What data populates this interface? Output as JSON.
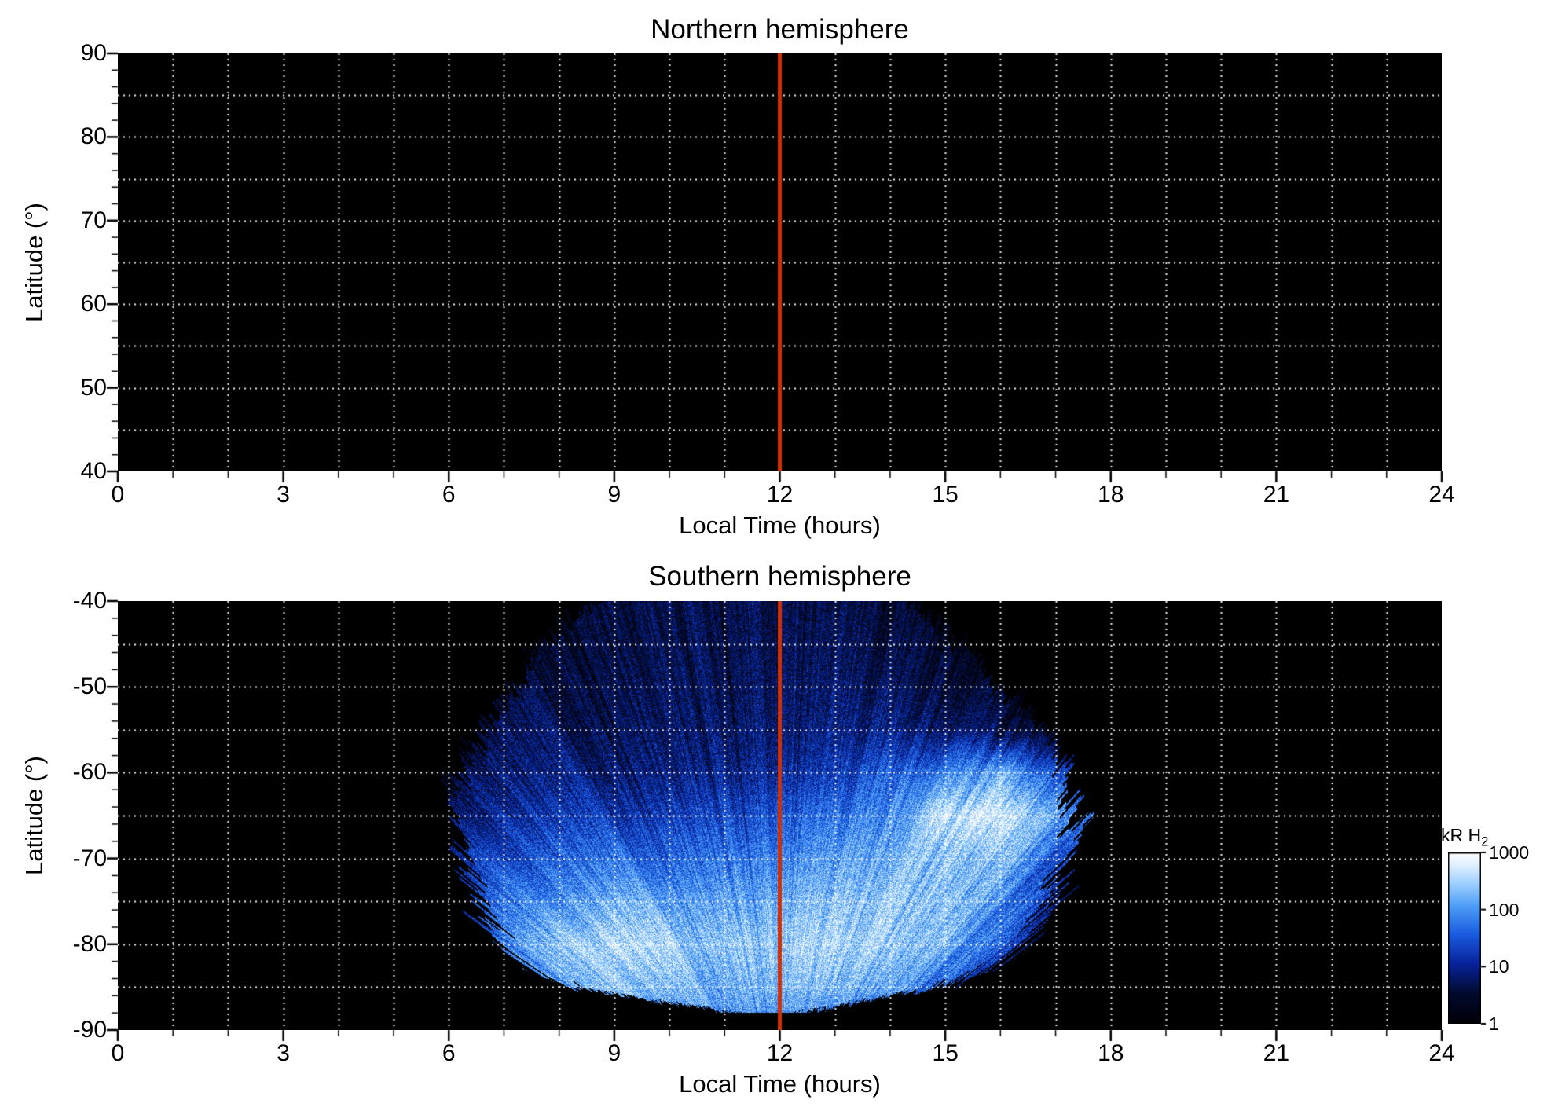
{
  "figure": {
    "bg": "#ffffff",
    "plot_bg": "#000000",
    "grid_color": "rgba(255,255,255,0.95)",
    "noon_line_color": "#d23000",
    "text_color": "#000000"
  },
  "chart_data": [
    {
      "type": "heatmap",
      "title": "Northern hemisphere",
      "xlabel": "Local Time (hours)",
      "ylabel": "Latitude (°)",
      "x_min": 0,
      "x_max": 24,
      "y_top": 90,
      "y_bottom": 40,
      "xticks": [
        0,
        3,
        6,
        9,
        12,
        15,
        18,
        21,
        24
      ],
      "yticks": [
        90,
        80,
        70,
        60,
        50,
        40
      ],
      "x_minor_step": 1,
      "y_minor_step": 2,
      "grid_x_step": 1,
      "grid_y_step": 5,
      "noon_line_x": 12,
      "data_note": "no emission observed; panel entirely black"
    },
    {
      "type": "heatmap",
      "title": "Southern hemisphere",
      "xlabel": "Local Time (hours)",
      "ylabel": "Latitude (°)",
      "x_min": 0,
      "x_max": 24,
      "y_top": -40,
      "y_bottom": -90,
      "xticks": [
        0,
        3,
        6,
        9,
        12,
        15,
        18,
        21,
        24
      ],
      "yticks": [
        -40,
        -50,
        -60,
        -70,
        -80,
        -90
      ],
      "x_minor_step": 1,
      "y_minor_step": 2,
      "grid_x_step": 1,
      "grid_y_step": 5,
      "noon_line_x": 12,
      "colorbar": {
        "label": "kR H",
        "label_sub": "2",
        "scale": "log",
        "min_kR": 1,
        "max_kR": 1000,
        "tick_labels": [
          "1000",
          "100",
          "10",
          "1"
        ],
        "tick_values": [
          1000,
          100,
          10,
          1
        ]
      },
      "aurora": {
        "units": "kR",
        "lt_cols": [
          6,
          7,
          8,
          9,
          10,
          11,
          12,
          13,
          14,
          15,
          16,
          17
        ],
        "lat_rows": [
          -40,
          -45,
          -50,
          -55,
          -60,
          -65,
          -70,
          -75,
          -80,
          -85,
          -90
        ],
        "values_kR": [
          [
            3,
            3,
            4,
            5,
            5,
            6,
            6,
            5,
            4,
            3,
            3,
            3
          ],
          [
            3,
            4,
            5,
            5,
            6,
            6,
            7,
            6,
            5,
            4,
            3,
            3
          ],
          [
            4,
            5,
            6,
            6,
            7,
            7,
            8,
            8,
            7,
            5,
            4,
            3
          ],
          [
            4,
            6,
            7,
            8,
            8,
            9,
            10,
            11,
            12,
            10,
            6,
            4
          ],
          [
            6,
            9,
            11,
            12,
            12,
            13,
            16,
            22,
            60,
            90,
            250,
            40
          ],
          [
            10,
            16,
            22,
            26,
            28,
            32,
            45,
            70,
            130,
            700,
            950,
            150
          ],
          [
            18,
            35,
            55,
            65,
            65,
            75,
            95,
            160,
            260,
            380,
            280,
            50
          ],
          [
            30,
            70,
            130,
            210,
            190,
            160,
            210,
            310,
            400,
            330,
            130,
            20
          ],
          [
            40,
            110,
            320,
            600,
            420,
            320,
            370,
            520,
            440,
            230,
            60,
            10
          ],
          [
            20,
            60,
            160,
            320,
            260,
            210,
            260,
            310,
            190,
            60,
            10,
            5
          ],
          [
            10,
            20,
            50,
            80,
            110,
            130,
            110,
            70,
            30,
            10,
            5,
            2
          ]
        ],
        "coverage": {
          "lat": [
            -40,
            -45,
            -50,
            -55,
            -60,
            -65,
            -70,
            -75,
            -80,
            -83,
            -85,
            -86.5,
            -88
          ],
          "lt_min": [
            8.6,
            7.8,
            7.1,
            6.55,
            6.15,
            6.05,
            6.2,
            6.5,
            6.9,
            7.4,
            8.2,
            9.6,
            11.2
          ],
          "lt_max": [
            14.5,
            15.2,
            16.0,
            16.8,
            17.3,
            17.35,
            17.2,
            16.95,
            16.4,
            15.7,
            14.9,
            13.6,
            12.4
          ]
        }
      },
      "colormap_stops": [
        [
          0.0,
          "#000006"
        ],
        [
          0.18,
          "#020b30"
        ],
        [
          0.35,
          "#08239b"
        ],
        [
          0.52,
          "#1b5be0"
        ],
        [
          0.68,
          "#4a9bf5"
        ],
        [
          0.82,
          "#9fd0ff"
        ],
        [
          0.92,
          "#dceeff"
        ],
        [
          1.0,
          "#ffffff"
        ]
      ]
    }
  ]
}
